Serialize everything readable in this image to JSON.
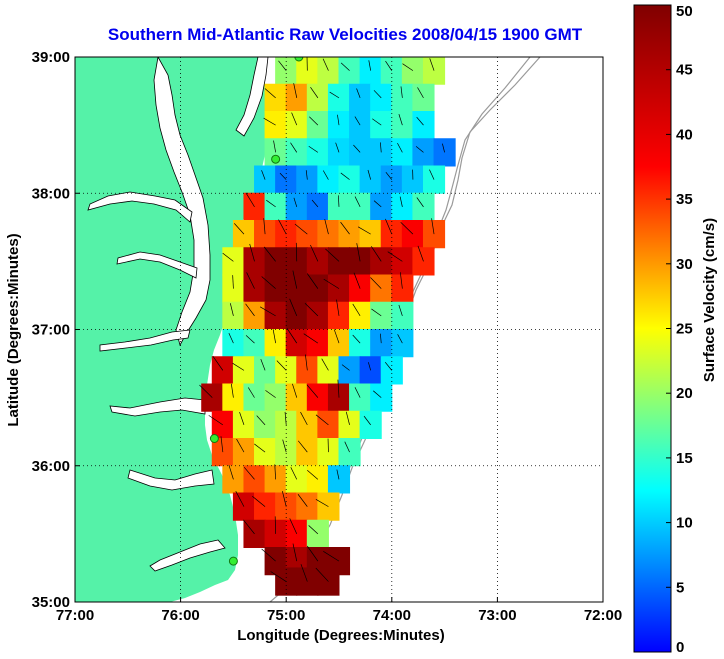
{
  "chart_data": {
    "type": "heatmap",
    "title": "Southern Mid-Atlantic Raw Velocities 2008/04/15 1900 GMT",
    "title_color": "#0000ee",
    "xlabel": "Longitude (Degrees:Minutes)",
    "ylabel": "Latitude (Degrees:Minutes)",
    "xlim": [
      -77,
      -72
    ],
    "ylim": [
      35,
      39
    ],
    "xticks": [
      {
        "value": -77,
        "label": "77:00"
      },
      {
        "value": -76,
        "label": "76:00"
      },
      {
        "value": -75,
        "label": "75:00"
      },
      {
        "value": -74,
        "label": "74:00"
      },
      {
        "value": -73,
        "label": "73:00"
      },
      {
        "value": -72,
        "label": "72:00"
      }
    ],
    "yticks": [
      {
        "value": 35,
        "label": "35:00"
      },
      {
        "value": 36,
        "label": "36:00"
      },
      {
        "value": 37,
        "label": "37:00"
      },
      {
        "value": 38,
        "label": "38:00"
      },
      {
        "value": 39,
        "label": "39:00"
      }
    ],
    "grid": true,
    "land_color": "#55f2a8",
    "colorbar": {
      "label": "Surface Velocity (cm/s)",
      "range": [
        0,
        50
      ],
      "ticks": [
        "0",
        "5",
        "10",
        "15",
        "20",
        "25",
        "30",
        "35",
        "40",
        "45",
        "50"
      ],
      "placement": "right"
    },
    "sites": [
      {
        "lon": -74.88,
        "lat": 39.0
      },
      {
        "lon": -75.1,
        "lat": 38.25
      },
      {
        "lon": -75.68,
        "lat": 36.2
      },
      {
        "lon": -75.5,
        "lat": 35.3
      }
    ],
    "velocity_field": [
      {
        "lat": 38.9,
        "lons": [
          -75.0,
          -74.8,
          -74.6,
          -74.4,
          -74.2,
          -74.0,
          -73.8,
          -73.6
        ],
        "speeds": [
          26,
          30,
          28,
          22,
          18,
          22,
          26,
          28
        ]
      },
      {
        "lat": 38.7,
        "lons": [
          -75.1,
          -74.9,
          -74.7,
          -74.5,
          -74.3,
          -74.1,
          -73.9,
          -73.7
        ],
        "speeds": [
          33,
          36,
          28,
          20,
          16,
          18,
          22,
          24
        ]
      },
      {
        "lat": 38.5,
        "lons": [
          -75.1,
          -74.9,
          -74.7,
          -74.5,
          -74.3,
          -74.1,
          -73.9,
          -73.7
        ],
        "speeds": [
          32,
          30,
          24,
          18,
          16,
          20,
          22,
          18
        ]
      },
      {
        "lat": 38.3,
        "lons": [
          -75.1,
          -74.9,
          -74.7,
          -74.5,
          -74.3,
          -74.1,
          -73.9,
          -73.7,
          -73.5
        ],
        "speeds": [
          24,
          22,
          20,
          17,
          16,
          16,
          18,
          14,
          12
        ]
      },
      {
        "lat": 38.1,
        "lons": [
          -75.2,
          -75.0,
          -74.8,
          -74.6,
          -74.4,
          -74.2,
          -74.0,
          -73.8,
          -73.6
        ],
        "speeds": [
          16,
          12,
          14,
          18,
          20,
          16,
          14,
          16,
          20
        ]
      },
      {
        "lat": 37.9,
        "lons": [
          -75.3,
          -75.1,
          -74.9,
          -74.7,
          -74.5,
          -74.3,
          -74.1,
          -73.9,
          -73.7
        ],
        "speeds": [
          42,
          22,
          14,
          12,
          22,
          22,
          14,
          18,
          22
        ]
      },
      {
        "lat": 37.7,
        "lons": [
          -75.4,
          -75.2,
          -75.0,
          -74.8,
          -74.6,
          -74.4,
          -74.2,
          -74.0,
          -73.8,
          -73.6
        ],
        "speeds": [
          34,
          40,
          42,
          40,
          38,
          36,
          34,
          42,
          44,
          40
        ]
      },
      {
        "lat": 37.5,
        "lons": [
          -75.5,
          -75.3,
          -75.1,
          -74.9,
          -74.7,
          -74.5,
          -74.3,
          -74.1,
          -73.9,
          -73.7
        ],
        "speeds": [
          30,
          48,
          50,
          50,
          48,
          50,
          50,
          48,
          46,
          42
        ]
      },
      {
        "lat": 37.3,
        "lons": [
          -75.5,
          -75.3,
          -75.1,
          -74.9,
          -74.7,
          -74.5,
          -74.3,
          -74.1,
          -73.9
        ],
        "speeds": [
          30,
          48,
          50,
          50,
          50,
          48,
          44,
          38,
          42
        ]
      },
      {
        "lat": 37.1,
        "lons": [
          -75.5,
          -75.3,
          -75.1,
          -74.9,
          -74.7,
          -74.5,
          -74.3,
          -74.1,
          -73.9
        ],
        "speeds": [
          28,
          36,
          48,
          50,
          48,
          42,
          32,
          24,
          22
        ]
      },
      {
        "lat": 36.9,
        "lons": [
          -75.5,
          -75.3,
          -75.1,
          -74.9,
          -74.7,
          -74.5,
          -74.3,
          -74.1,
          -73.9
        ],
        "speeds": [
          20,
          22,
          32,
          46,
          44,
          34,
          20,
          14,
          16
        ]
      },
      {
        "lat": 36.7,
        "lons": [
          -75.6,
          -75.4,
          -75.2,
          -75.0,
          -74.8,
          -74.6,
          -74.4,
          -74.2,
          -74.0
        ],
        "speeds": [
          46,
          30,
          24,
          30,
          40,
          30,
          14,
          10,
          18
        ]
      },
      {
        "lat": 36.5,
        "lons": [
          -75.7,
          -75.5,
          -75.3,
          -75.1,
          -74.9,
          -74.7,
          -74.5,
          -74.3,
          -74.1
        ],
        "speeds": [
          48,
          32,
          24,
          26,
          34,
          44,
          48,
          22,
          18
        ]
      },
      {
        "lat": 36.3,
        "lons": [
          -75.6,
          -75.4,
          -75.2,
          -75.0,
          -74.8,
          -74.6,
          -74.4,
          -74.2
        ],
        "speeds": [
          44,
          30,
          26,
          28,
          34,
          40,
          30,
          20
        ]
      },
      {
        "lat": 36.1,
        "lons": [
          -75.6,
          -75.4,
          -75.2,
          -75.0,
          -74.8,
          -74.6,
          -74.4
        ],
        "speeds": [
          40,
          36,
          30,
          28,
          34,
          30,
          22
        ]
      },
      {
        "lat": 35.9,
        "lons": [
          -75.5,
          -75.3,
          -75.1,
          -74.9,
          -74.7,
          -74.5
        ],
        "speeds": [
          36,
          40,
          36,
          30,
          32,
          16
        ]
      },
      {
        "lat": 35.7,
        "lons": [
          -75.4,
          -75.2,
          -75.0,
          -74.8,
          -74.6
        ],
        "speeds": [
          46,
          42,
          40,
          38,
          34
        ]
      },
      {
        "lat": 35.5,
        "lons": [
          -75.3,
          -75.1,
          -74.9,
          -74.7
        ],
        "speeds": [
          48,
          46,
          44,
          26
        ]
      },
      {
        "lat": 35.3,
        "lons": [
          -75.1,
          -74.9,
          -74.7,
          -74.5
        ],
        "speeds": [
          50,
          48,
          50,
          50
        ]
      },
      {
        "lat": 35.15,
        "lons": [
          -75.0,
          -74.8,
          -74.6
        ],
        "speeds": [
          50,
          50,
          50
        ]
      }
    ]
  }
}
